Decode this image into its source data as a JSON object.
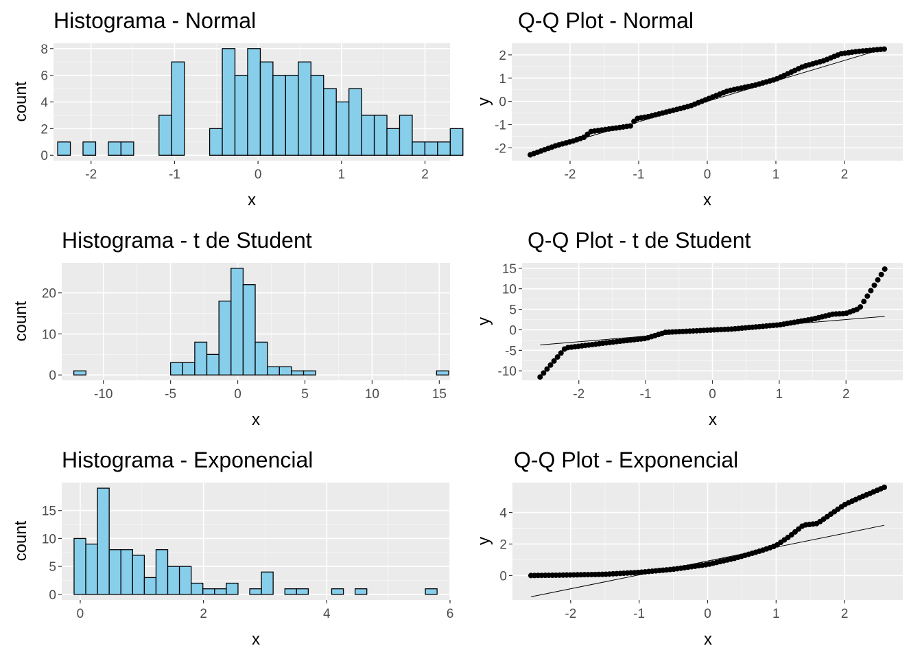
{
  "style": {
    "panel_background": "#EBEBEB",
    "grid_major": "#FFFFFF",
    "bar_fill": "#87CEEB",
    "bar_stroke": "#000000",
    "point_color": "#000000",
    "line_color": "#000000"
  },
  "chart_data": [
    {
      "type": "bar",
      "title": "Histograma - Normal",
      "xlabel": "x",
      "ylabel": "count",
      "xlim": [
        -2.45,
        2.3
      ],
      "ylim": [
        -0.4,
        8.4
      ],
      "xticks": [
        -2,
        -1,
        0,
        1,
        2
      ],
      "xtick_labels": [
        "-2",
        "-1",
        "0",
        "1",
        "2"
      ],
      "yticks": [
        0,
        2,
        4,
        6,
        8
      ],
      "ytick_labels": [
        "0",
        "2",
        "4",
        "6",
        "8"
      ],
      "bin_start": -2.4,
      "bin_width": 0.1517,
      "values": [
        1,
        0,
        1,
        0,
        1,
        1,
        0,
        0,
        3,
        7,
        0,
        0,
        2,
        8,
        6,
        8,
        7,
        6,
        6,
        7,
        6,
        5,
        4,
        5,
        3,
        3,
        2,
        3,
        1,
        1,
        1,
        2
      ],
      "grid": true
    },
    {
      "type": "scatter",
      "title": "Q-Q Plot - Normal",
      "xlabel": "x",
      "ylabel": "y",
      "xlim": [
        -2.85,
        2.85
      ],
      "ylim": [
        -2.55,
        2.5
      ],
      "xticks": [
        -2,
        -1,
        0,
        1,
        2
      ],
      "xtick_labels": [
        "-2",
        "-1",
        "0",
        "1",
        "2"
      ],
      "yticks": [
        -2,
        -1,
        0,
        1,
        2
      ],
      "ytick_labels": [
        "-2",
        "-1",
        "0",
        "1",
        "2"
      ],
      "quantile_knots": [
        [
          -2.58,
          -2.3
        ],
        [
          -2.2,
          -1.9
        ],
        [
          -1.95,
          -1.7
        ],
        [
          -1.8,
          -1.55
        ],
        [
          -1.7,
          -1.3
        ],
        [
          -1.1,
          -1.05
        ],
        [
          -1.05,
          -0.75
        ],
        [
          -0.85,
          -0.65
        ],
        [
          -0.25,
          -0.2
        ],
        [
          0.3,
          0.45
        ],
        [
          0.7,
          0.7
        ],
        [
          1.0,
          0.95
        ],
        [
          1.4,
          1.5
        ],
        [
          1.7,
          1.75
        ],
        [
          1.95,
          2.05
        ],
        [
          2.2,
          2.15
        ],
        [
          2.58,
          2.25
        ]
      ],
      "reference_line": {
        "intercept": 0.0,
        "slope": 0.88
      },
      "grid": true
    },
    {
      "type": "bar",
      "title": "Histograma - t de Student",
      "xlabel": "x",
      "ylabel": "count",
      "xlim": [
        -13.1,
        15.8
      ],
      "ylim": [
        -1.3,
        27.3
      ],
      "xticks": [
        -10,
        -5,
        0,
        5,
        10,
        15
      ],
      "xtick_labels": [
        "-10",
        "-5",
        "0",
        "5",
        "10",
        "15"
      ],
      "yticks": [
        0,
        10,
        20
      ],
      "ytick_labels": [
        "0",
        "10",
        "20"
      ],
      "bin_start": -12.2,
      "bin_width": 0.9,
      "values": [
        1,
        0,
        0,
        0,
        0,
        0,
        0,
        0,
        3,
        3,
        8,
        5,
        18,
        26,
        22,
        8,
        2,
        2,
        1,
        1,
        0,
        0,
        0,
        0,
        0,
        0,
        0,
        0,
        0,
        0,
        1
      ],
      "grid": true
    },
    {
      "type": "scatter",
      "title": "Q-Q Plot - t de Student",
      "xlabel": "x",
      "ylabel": "y",
      "xlim": [
        -2.85,
        2.85
      ],
      "ylim": [
        -12.3,
        16.3
      ],
      "xticks": [
        -2,
        -1,
        0,
        1,
        2
      ],
      "xtick_labels": [
        "-2",
        "-1",
        "0",
        "1",
        "2"
      ],
      "yticks": [
        -10,
        -5,
        0,
        5,
        10,
        15
      ],
      "ytick_labels": [
        "-10",
        "-5",
        "0",
        "5",
        "10",
        "15"
      ],
      "quantile_knots": [
        [
          -2.58,
          -11.5
        ],
        [
          -2.2,
          -4.4
        ],
        [
          -1.9,
          -3.8
        ],
        [
          -1.5,
          -3.0
        ],
        [
          -1.0,
          -2.1
        ],
        [
          -0.7,
          -0.6
        ],
        [
          0.3,
          0.2
        ],
        [
          1.0,
          1.2
        ],
        [
          1.5,
          2.6
        ],
        [
          1.8,
          3.8
        ],
        [
          2.0,
          4.0
        ],
        [
          2.2,
          5.2
        ],
        [
          2.58,
          14.8
        ]
      ],
      "reference_line": {
        "intercept": -0.2,
        "slope": 1.35
      },
      "grid": true
    },
    {
      "type": "bar",
      "title": "Histograma - Exponencial",
      "xlabel": "x",
      "ylabel": "count",
      "xlim": [
        -0.3,
        6.0
      ],
      "ylim": [
        -1.0,
        20.0
      ],
      "xticks": [
        0,
        2,
        4,
        6
      ],
      "xtick_labels": [
        "0",
        "2",
        "4",
        "6"
      ],
      "yticks": [
        0,
        5,
        10,
        15
      ],
      "ytick_labels": [
        "0",
        "5",
        "10",
        "15"
      ],
      "bin_start": -0.1,
      "bin_width": 0.19,
      "values": [
        10,
        9,
        19,
        8,
        8,
        7,
        3,
        8,
        5,
        5,
        2,
        1,
        1,
        2,
        0,
        1,
        4,
        0,
        1,
        1,
        0,
        0,
        1,
        0,
        1,
        0,
        0,
        0,
        0,
        0,
        1
      ],
      "grid": true
    },
    {
      "type": "scatter",
      "title": "Q-Q Plot - Exponencial",
      "xlabel": "x",
      "ylabel": "y",
      "xlim": [
        -2.85,
        2.85
      ],
      "ylim": [
        -1.55,
        5.9
      ],
      "xticks": [
        -2,
        -1,
        0,
        1,
        2
      ],
      "xtick_labels": [
        "-2",
        "-1",
        "0",
        "1",
        "2"
      ],
      "yticks": [
        0,
        2,
        4
      ],
      "ytick_labels": [
        "0",
        "2",
        "4"
      ],
      "quantile_knots": [
        [
          -2.58,
          0.0
        ],
        [
          -2.2,
          0.02
        ],
        [
          -1.5,
          0.08
        ],
        [
          -1.0,
          0.2
        ],
        [
          -0.5,
          0.4
        ],
        [
          0.0,
          0.7
        ],
        [
          0.4,
          1.1
        ],
        [
          0.8,
          1.6
        ],
        [
          1.0,
          1.9
        ],
        [
          1.2,
          2.5
        ],
        [
          1.4,
          3.2
        ],
        [
          1.6,
          3.3
        ],
        [
          1.8,
          3.9
        ],
        [
          2.0,
          4.5
        ],
        [
          2.2,
          4.9
        ],
        [
          2.58,
          5.6
        ]
      ],
      "reference_line": {
        "intercept": 0.92,
        "slope": 0.88
      },
      "grid": true
    }
  ]
}
